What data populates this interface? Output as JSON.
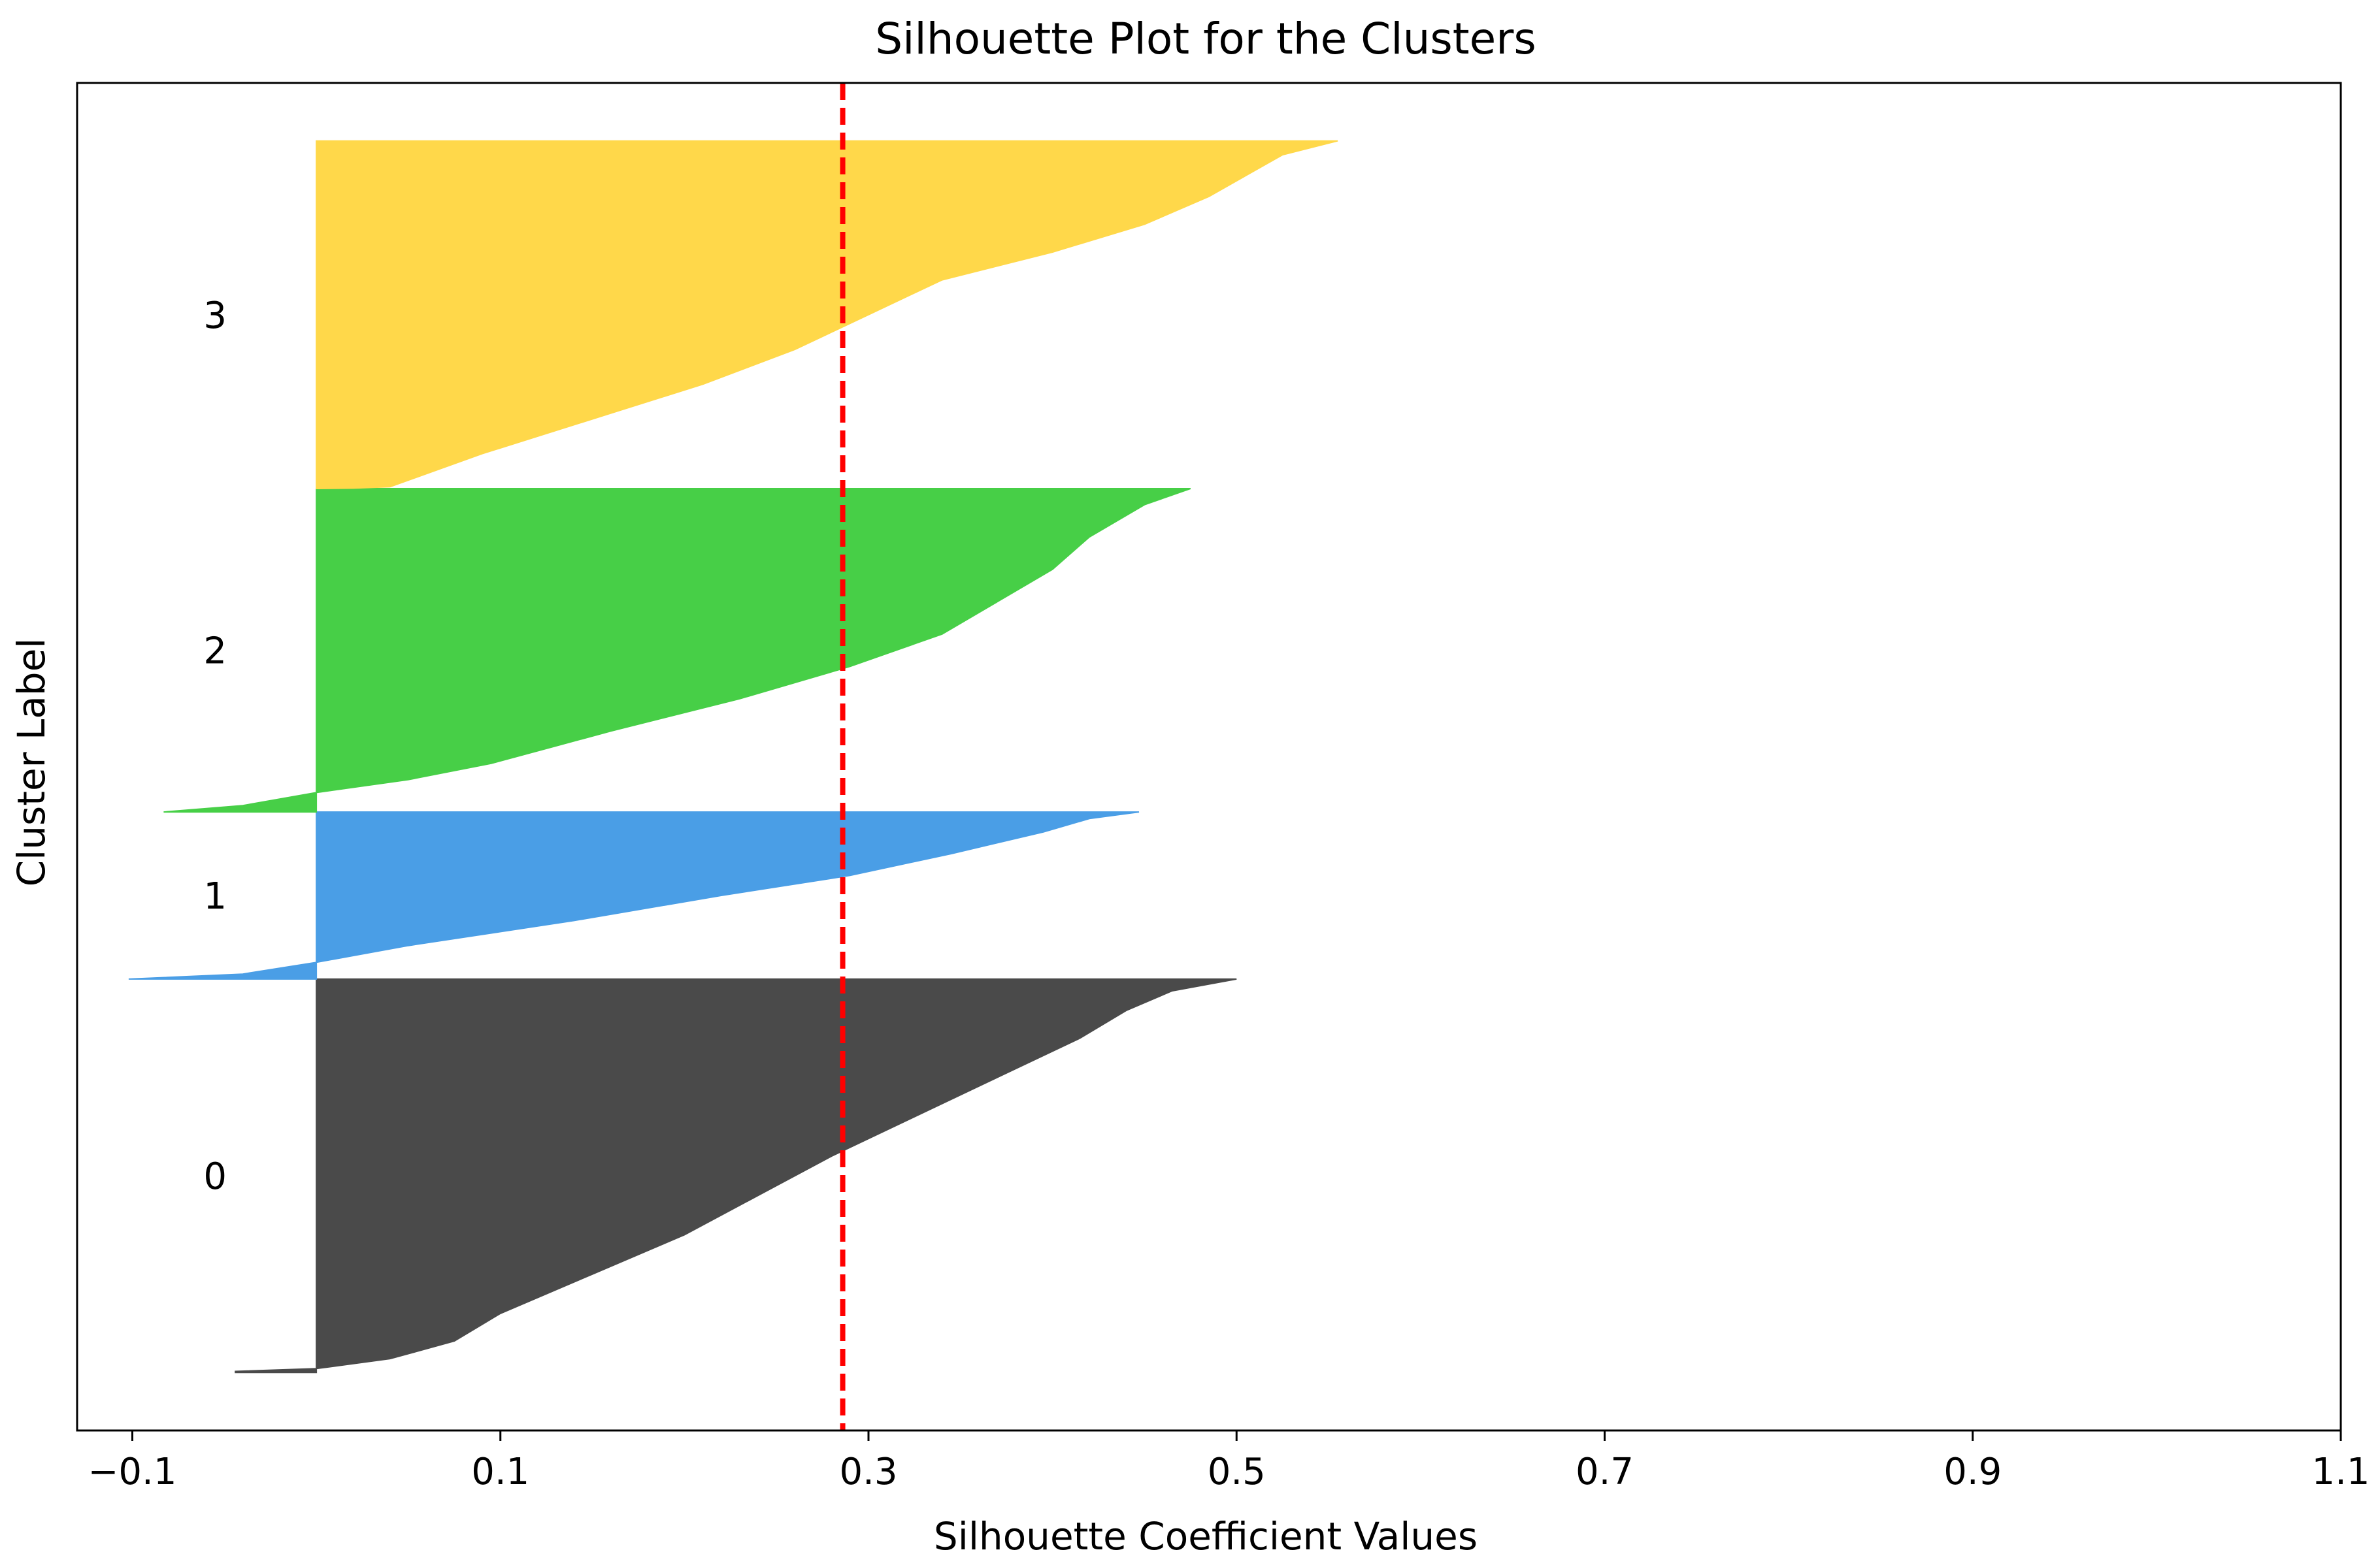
{
  "chart_data": {
    "type": "area",
    "title": "Silhouette Plot for the Clusters",
    "xlabel": "Silhouette Coefficient Values",
    "ylabel": "Cluster Label",
    "xlim": [
      -0.13,
      1.1
    ],
    "xticks": [
      -0.1,
      0.1,
      0.3,
      0.5,
      0.7,
      0.9,
      1.1
    ],
    "xtick_labels": [
      "−0.1",
      "0.1",
      "0.3",
      "0.5",
      "0.7",
      "0.9",
      "1.1"
    ],
    "ylim": [
      0,
      1
    ],
    "grid": false,
    "average_silhouette": 0.286,
    "average_line_color": "#ff0000",
    "series": [
      {
        "name": "0",
        "color": "#4a4a4a",
        "y_range": [
          0.043,
          0.335
        ],
        "profile": [
          [
            0.0,
            -0.044
          ],
          [
            0.003,
            -0.044
          ],
          [
            0.01,
            0.0
          ],
          [
            0.035,
            0.04
          ],
          [
            0.08,
            0.075
          ],
          [
            0.15,
            0.1
          ],
          [
            0.25,
            0.15
          ],
          [
            0.35,
            0.2
          ],
          [
            0.45,
            0.24
          ],
          [
            0.55,
            0.28
          ],
          [
            0.65,
            0.325
          ],
          [
            0.75,
            0.37
          ],
          [
            0.85,
            0.415
          ],
          [
            0.92,
            0.44
          ],
          [
            0.97,
            0.465
          ],
          [
            1.0,
            0.5
          ]
        ]
      },
      {
        "name": "1",
        "color": "#4a9ee6",
        "y_range": [
          0.335,
          0.459
        ],
        "profile": [
          [
            0.0,
            -0.102
          ],
          [
            0.03,
            -0.04
          ],
          [
            0.1,
            0.0
          ],
          [
            0.2,
            0.05
          ],
          [
            0.35,
            0.14
          ],
          [
            0.5,
            0.22
          ],
          [
            0.62,
            0.29
          ],
          [
            0.75,
            0.345
          ],
          [
            0.88,
            0.395
          ],
          [
            0.96,
            0.42
          ],
          [
            1.0,
            0.447
          ]
        ]
      },
      {
        "name": "2",
        "color": "#47cf47",
        "y_range": [
          0.459,
          0.699
        ],
        "profile": [
          [
            0.0,
            -0.083
          ],
          [
            0.02,
            -0.04
          ],
          [
            0.06,
            0.0
          ],
          [
            0.1,
            0.05
          ],
          [
            0.15,
            0.095
          ],
          [
            0.25,
            0.16
          ],
          [
            0.35,
            0.23
          ],
          [
            0.45,
            0.29
          ],
          [
            0.55,
            0.34
          ],
          [
            0.65,
            0.37
          ],
          [
            0.75,
            0.4
          ],
          [
            0.85,
            0.42
          ],
          [
            0.95,
            0.45
          ],
          [
            1.0,
            0.475
          ]
        ]
      },
      {
        "name": "3",
        "color": "#ffd84a",
        "y_range": [
          0.699,
          0.957
        ],
        "profile": [
          [
            0.0,
            0.0
          ],
          [
            0.001,
            0.02
          ],
          [
            0.005,
            0.04
          ],
          [
            0.1,
            0.09
          ],
          [
            0.2,
            0.15
          ],
          [
            0.3,
            0.21
          ],
          [
            0.4,
            0.26
          ],
          [
            0.5,
            0.3
          ],
          [
            0.6,
            0.34
          ],
          [
            0.68,
            0.4
          ],
          [
            0.76,
            0.45
          ],
          [
            0.84,
            0.485
          ],
          [
            0.9,
            0.505
          ],
          [
            0.96,
            0.525
          ],
          [
            1.0,
            0.555
          ]
        ]
      }
    ]
  }
}
